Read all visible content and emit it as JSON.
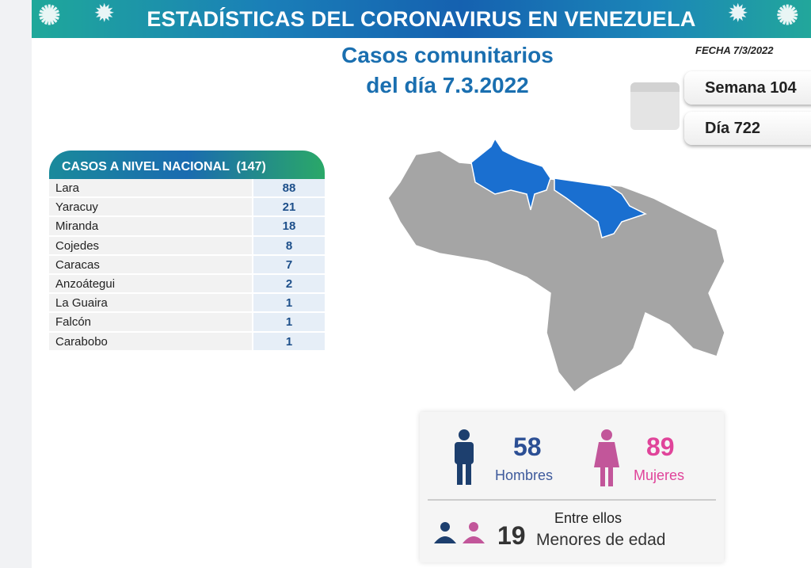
{
  "header": {
    "title": "ESTADÍSTICAS DEL CORONAVIRUS EN VENEZUELA"
  },
  "subtitle": {
    "line1": "Casos comunitarios",
    "line2": "del día 7.3.2022"
  },
  "fecha": "FECHA 7/3/2022",
  "semana": "Semana 104",
  "dia": "Día 722",
  "table": {
    "header": "CASOS A NIVEL NACIONAL  (147)",
    "rows": [
      {
        "state": "Lara",
        "cases": "88"
      },
      {
        "state": "Yaracuy",
        "cases": "21"
      },
      {
        "state": "Miranda",
        "cases": "18"
      },
      {
        "state": "Cojedes",
        "cases": "8"
      },
      {
        "state": "Caracas",
        "cases": "7"
      },
      {
        "state": "Anzoátegui",
        "cases": "2"
      },
      {
        "state": "La Guaira",
        "cases": "1"
      },
      {
        "state": "Falcón",
        "cases": "1"
      },
      {
        "state": "Carabobo",
        "cases": "1"
      }
    ]
  },
  "stats": {
    "men_count": "58",
    "men_label": "Hombres",
    "women_count": "89",
    "women_label": "Mujeres",
    "among": "Entre ellos",
    "minors_count": "19",
    "minors_label": "Menores de edad"
  },
  "colors": {
    "men": "#1d3f6e",
    "women": "#c2569a",
    "affected": "#1a6fd0",
    "unaffected": "#a5a5a5"
  }
}
